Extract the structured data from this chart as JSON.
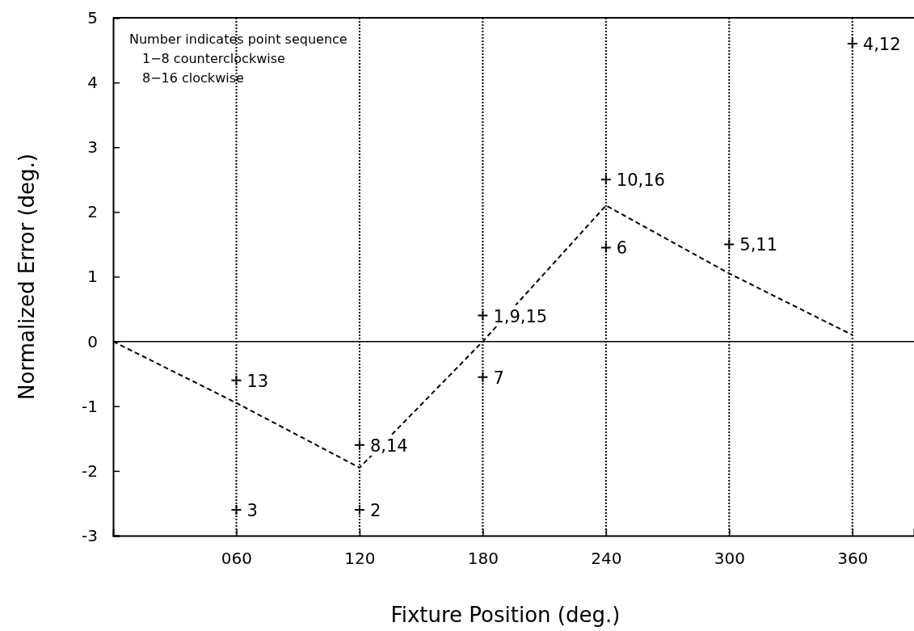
{
  "chart_data": {
    "type": "line",
    "xlabel": "Fixture Position (deg.)",
    "ylabel": "Normalized Error (deg.)",
    "xlim": [
      0,
      390
    ],
    "xticks": [
      {
        "value": 60,
        "label": "060"
      },
      120,
      180,
      240,
      300,
      360
    ],
    "ylim": [
      -3,
      5
    ],
    "yticks": [
      -3,
      -2,
      -1,
      0,
      1,
      2,
      3,
      4,
      5
    ],
    "annotations": [
      "Number indicates point sequence",
      "1−8  counterclockwise",
      "8−16 clockwise",
      {
        "text": "13",
        "x": 60,
        "y": -0.6
      },
      {
        "text": "3",
        "x": 60,
        "y": -2.6
      },
      {
        "text": "8,14",
        "x": 120,
        "y": -1.6
      },
      {
        "text": "2",
        "x": 120,
        "y": -2.6
      },
      {
        "text": "1,9,15",
        "x": 180,
        "y": 0.4
      },
      {
        "text": "7",
        "x": 180,
        "y": -0.55
      },
      {
        "text": "10,16",
        "x": 240,
        "y": 2.5
      },
      {
        "text": "6",
        "x": 240,
        "y": 1.45
      },
      {
        "text": "5,11",
        "x": 300,
        "y": 1.5
      },
      {
        "text": "4,12",
        "x": 360,
        "y": 4.6
      }
    ],
    "ref_lines": [
      {
        "axis": "y",
        "value": 0,
        "line_style": "solid",
        "color": "#000000"
      },
      {
        "axis": "x",
        "value": 60,
        "line_style": "dotted",
        "color": "#000000"
      },
      {
        "axis": "x",
        "value": 120,
        "line_style": "dotted",
        "color": "#000000"
      },
      {
        "axis": "x",
        "value": 180,
        "line_style": "dotted",
        "color": "#000000"
      },
      {
        "axis": "x",
        "value": 240,
        "line_style": "dotted",
        "color": "#000000"
      },
      {
        "axis": "x",
        "value": 300,
        "line_style": "dotted",
        "color": "#000000"
      },
      {
        "axis": "x",
        "value": 360,
        "line_style": "dotted",
        "color": "#000000"
      }
    ],
    "series": [
      {
        "color": "#000000",
        "line_style": "dashed",
        "marker": "none",
        "x": [
          0,
          60,
          120,
          180,
          240,
          300,
          360
        ],
        "values": [
          0,
          -0.95,
          -1.95,
          0,
          2.1,
          1.05,
          0.1
        ]
      },
      {
        "type": "scatter",
        "color": "#000000",
        "marker": "cross",
        "x": [
          60,
          60,
          120,
          120,
          180,
          180,
          240,
          240,
          300,
          360
        ],
        "values": [
          -0.6,
          -2.6,
          -1.6,
          -2.6,
          0.4,
          -0.55,
          2.5,
          1.45,
          1.5,
          4.6
        ]
      }
    ]
  }
}
